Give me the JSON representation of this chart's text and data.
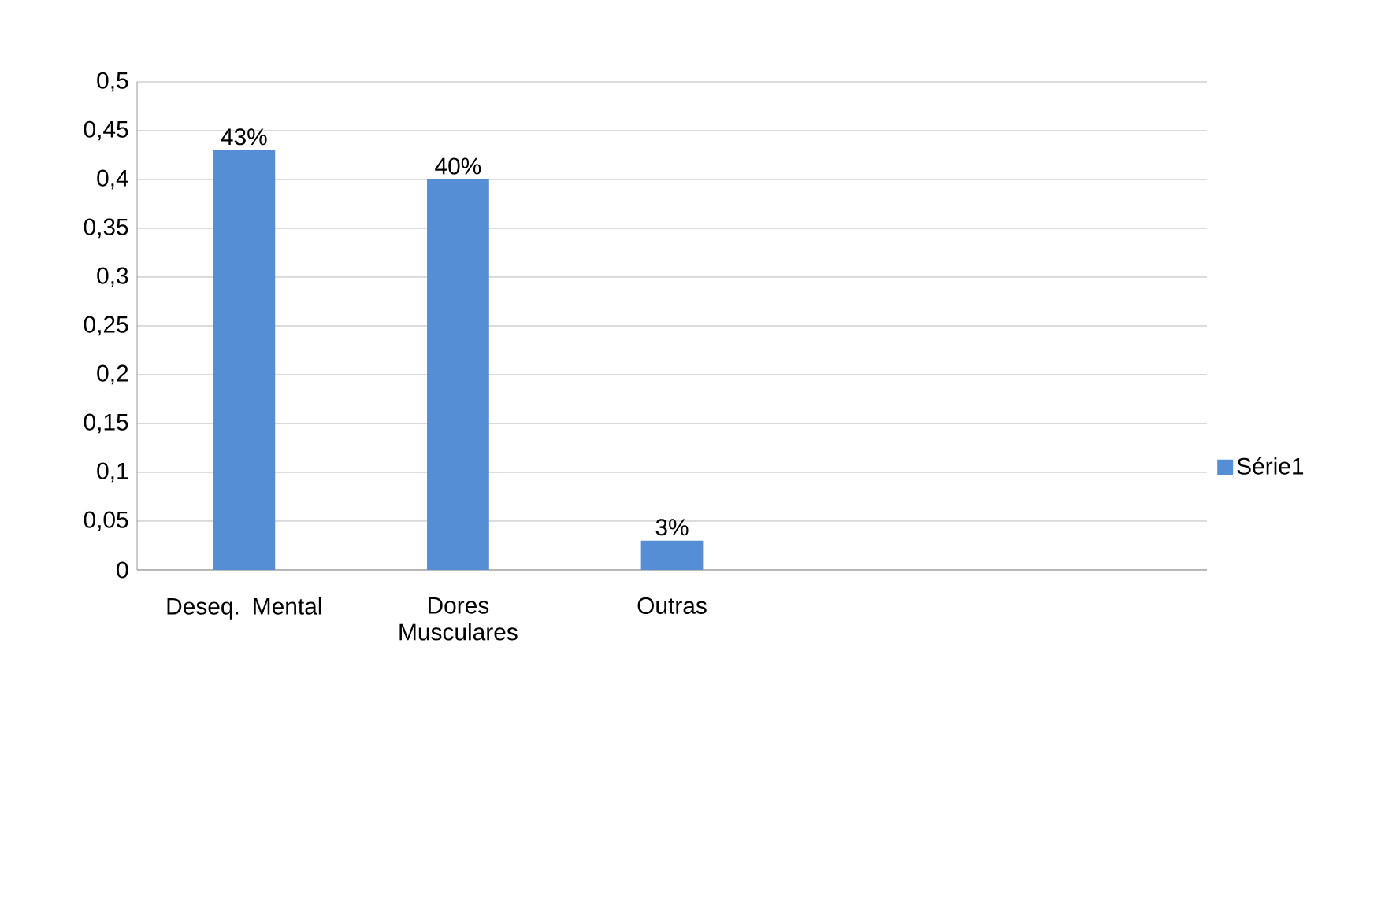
{
  "chart_data": {
    "type": "bar",
    "categories": [
      "Deseq. Mental",
      "Dores Musculares",
      "Outras",
      null,
      null
    ],
    "series": [
      {
        "name": "Série1",
        "color": "#558ed5",
        "values": [
          0.43,
          0.4,
          0.03,
          null,
          null
        ],
        "value_labels": [
          "43%",
          "40%",
          "3%",
          null,
          null
        ]
      }
    ],
    "ylim": [
      0,
      0.5
    ],
    "yticks": [
      0,
      {
        "value": 0.05,
        "label": "0,05"
      },
      {
        "value": 0.1,
        "label": "0,1"
      },
      {
        "value": 0.15,
        "label": "0,15"
      },
      {
        "value": 0.2,
        "label": "0,2"
      },
      {
        "value": 0.25,
        "label": "0,25"
      },
      {
        "value": 0.3,
        "label": "0,3"
      },
      {
        "value": 0.35,
        "label": "0,35"
      },
      {
        "value": 0.4,
        "label": "0,4"
      },
      {
        "value": 0.45,
        "label": "0,45"
      },
      {
        "value": 0.5,
        "label": "0,5"
      }
    ],
    "grid": "y",
    "legend": "right"
  }
}
